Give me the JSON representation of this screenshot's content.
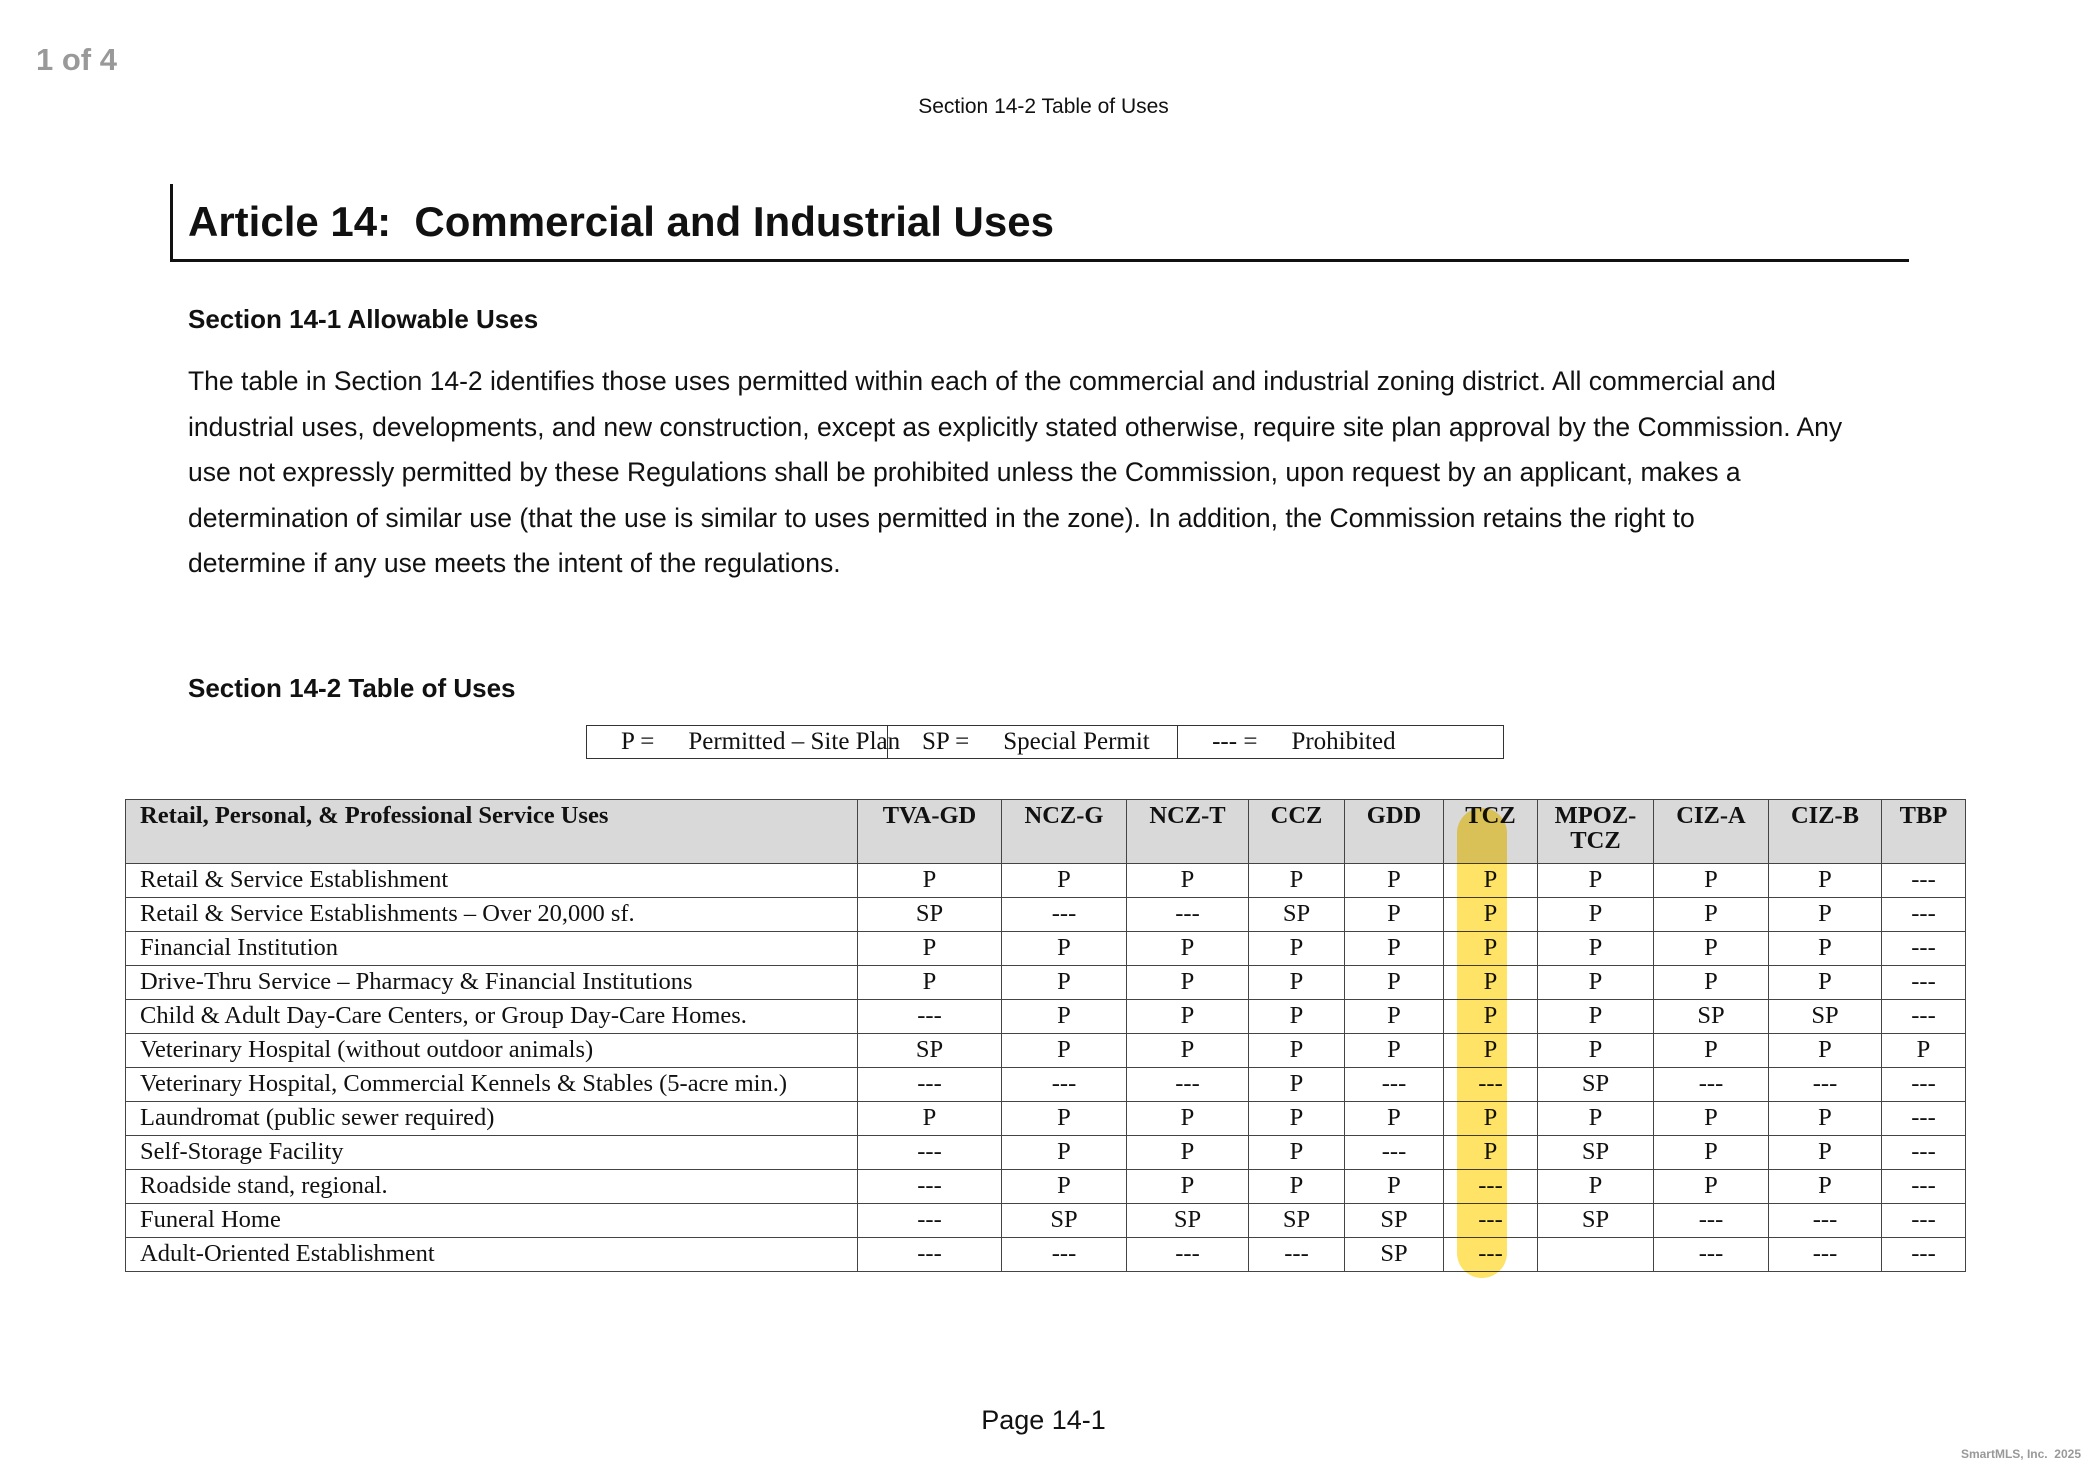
{
  "page_counter": "1 of 4",
  "header": "Section 14-2 Table of Uses",
  "article_title": "Article 14:  Commercial and Industrial Uses",
  "section1": {
    "heading": "Section 14-1 Allowable Uses",
    "lines": [
      "The table in Section 14-2 identifies those uses permitted within each of the commercial and industrial zoning district. All commercial and",
      "industrial uses, developments, and new construction, except as explicitly stated otherwise, require site plan approval by the Commission. Any",
      "use not expressly permitted by these Regulations shall be prohibited unless the Commission, upon request by an applicant, makes a",
      "determination of similar use (that the use is similar to uses permitted in the zone). In addition, the Commission retains the right to",
      "determine if any use meets the intent of the regulations."
    ]
  },
  "section2": {
    "heading": "Section 14-2 Table of Uses"
  },
  "legend": [
    [
      "P =",
      "Permitted – Site Plan"
    ],
    [
      "SP =",
      "Special Permit"
    ],
    [
      "--- =",
      "Prohibited"
    ]
  ],
  "table": {
    "header": [
      "Retail, Personal, & Professional Service Uses",
      "TVA-GD",
      "NCZ-G",
      "NCZ-T",
      "CCZ",
      "GDD",
      "TCZ",
      "MPOZ-TCZ",
      "CIZ-A",
      "CIZ-B",
      "TBP"
    ],
    "rows": [
      {
        "use": "Retail & Service Establishment",
        "cells": [
          "P",
          "P",
          "P",
          "P",
          "P",
          "P",
          "P",
          "P",
          "P",
          "---"
        ]
      },
      {
        "use": "Retail & Service Establishments – Over 20,000 sf.",
        "cells": [
          "SP",
          "---",
          "---",
          "SP",
          "P",
          "P",
          "P",
          "P",
          "P",
          "---"
        ]
      },
      {
        "use": "Financial Institution",
        "cells": [
          "P",
          "P",
          "P",
          "P",
          "P",
          "P",
          "P",
          "P",
          "P",
          "---"
        ]
      },
      {
        "use": "Drive-Thru Service – Pharmacy & Financial Institutions",
        "cells": [
          "P",
          "P",
          "P",
          "P",
          "P",
          "P",
          "P",
          "P",
          "P",
          "---"
        ]
      },
      {
        "use": "Child & Adult Day-Care Centers, or Group Day-Care Homes.",
        "cells": [
          "---",
          "P",
          "P",
          "P",
          "P",
          "P",
          "P",
          "SP",
          "SP",
          "---"
        ]
      },
      {
        "use": "Veterinary Hospital (without outdoor animals)",
        "cells": [
          "SP",
          "P",
          "P",
          "P",
          "P",
          "P",
          "P",
          "P",
          "P",
          "P"
        ]
      },
      {
        "use": "Veterinary Hospital, Commercial Kennels & Stables (5-acre min.)",
        "cells": [
          "---",
          "---",
          "---",
          "P",
          "---",
          "---",
          "SP",
          "---",
          "---",
          "---"
        ]
      },
      {
        "use": "Laundromat (public sewer required)",
        "cells": [
          "P",
          "P",
          "P",
          "P",
          "P",
          "P",
          "P",
          "P",
          "P",
          "---"
        ]
      },
      {
        "use": "Self-Storage Facility",
        "cells": [
          "---",
          "P",
          "P",
          "P",
          "---",
          "P",
          "SP",
          "P",
          "P",
          "---"
        ]
      },
      {
        "use": "Roadside stand, regional.",
        "cells": [
          "---",
          "P",
          "P",
          "P",
          "P",
          "---",
          "P",
          "P",
          "P",
          "---"
        ]
      },
      {
        "use": "Funeral Home",
        "cells": [
          "---",
          "SP",
          "SP",
          "SP",
          "SP",
          "---",
          "SP",
          "---",
          "---",
          "---"
        ]
      },
      {
        "use": "Adult-Oriented Establishment",
        "cells": [
          "---",
          "---",
          "---",
          "---",
          "SP",
          "---",
          null,
          "---",
          "---",
          "---"
        ]
      }
    ]
  },
  "footer": "Page 14-1",
  "watermark": "SmartMLS, Inc.  2025"
}
